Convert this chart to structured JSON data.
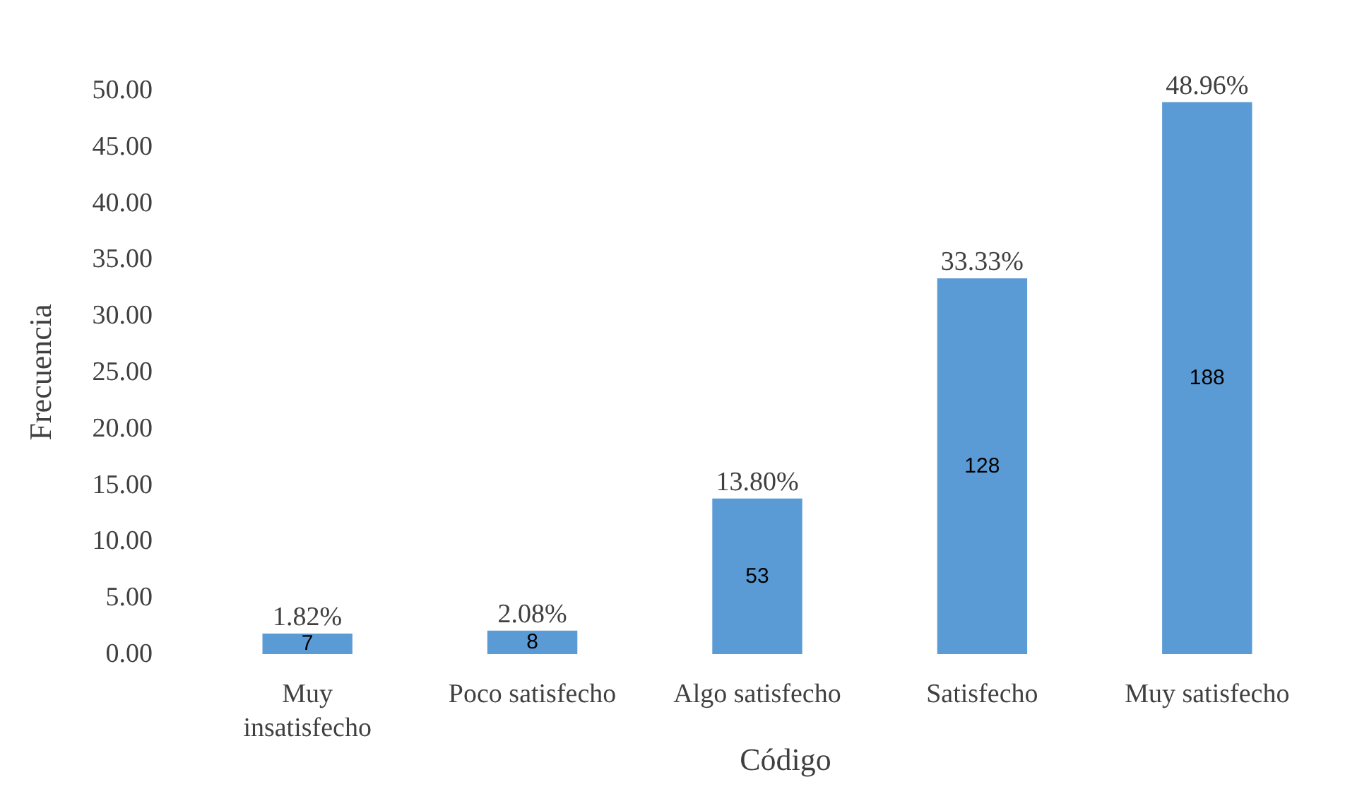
{
  "chart_data": {
    "type": "bar",
    "xlabel": "Código",
    "ylabel": "Frecuencia",
    "categories": [
      "Muy insatisfecho",
      "Poco satisfecho",
      "Algo satisfecho",
      "Satisfecho",
      "Muy satisfecho"
    ],
    "values": [
      1.82,
      2.08,
      13.8,
      33.33,
      48.96
    ],
    "color": "#5b9bd5",
    "value_labels": [
      "1.82%",
      "2.08%",
      "13.80%",
      "33.33%",
      "48.96%"
    ],
    "ylim": [
      0,
      50
    ],
    "yticks": [
      {
        "value": 0,
        "label": "0.00"
      },
      {
        "value": 5,
        "label": "5.00"
      },
      {
        "value": 10,
        "label": "10.00"
      },
      {
        "value": 15,
        "label": "15.00"
      },
      {
        "value": 20,
        "label": "20.00"
      },
      {
        "value": 25,
        "label": "25.00"
      },
      {
        "value": 30,
        "label": "30.00"
      },
      {
        "value": 35,
        "label": "35.00"
      },
      {
        "value": 40,
        "label": "40.00"
      },
      {
        "value": 45,
        "label": "45.00"
      },
      {
        "value": 50,
        "label": "50.00"
      }
    ],
    "annotations": [
      "7",
      "8",
      "53",
      "128",
      "188"
    ]
  }
}
